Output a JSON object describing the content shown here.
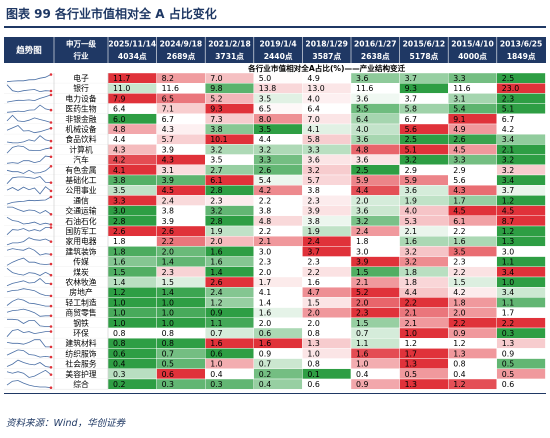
{
  "title": "图表 99    各行业市值相对全 A 占比变化",
  "source": "资料来源：Wind，华创证券",
  "colors": {
    "header_bg": "#1f3864",
    "header_text": "#ffffff",
    "high": "#e0323a",
    "mid": "#ffffff",
    "low": "#2e9e44"
  },
  "chart_data": {
    "type": "heatmap",
    "header": {
      "trend": "趋势图",
      "industry": "申万一级行业",
      "dates": [
        "2025/11/14",
        "2024/9/18",
        "2021/2/18",
        "2019/1/4",
        "2018/1/29",
        "2016/1/27",
        "2015/6/12",
        "2015/4/10",
        "2013/6/25"
      ],
      "points": [
        "4034点",
        "2689点",
        "3731点",
        "2440点",
        "3587点",
        "2638点",
        "5178点",
        "4000点",
        "1849点"
      ],
      "band": "各行业市值相对全A占比(%)——产业结构变迁"
    },
    "rows": [
      {
        "name": "电子",
        "values": [
          11.7,
          8.2,
          7.0,
          5.0,
          4.9,
          3.6,
          3.7,
          3.3,
          2.5
        ]
      },
      {
        "name": "银行",
        "values": [
          11.0,
          11.6,
          9.8,
          13.8,
          13.0,
          11.6,
          9.3,
          11.6,
          23.0
        ]
      },
      {
        "name": "电力设备",
        "values": [
          7.9,
          6.5,
          5.2,
          3.5,
          4.0,
          3.6,
          3.7,
          3.1,
          2.3
        ]
      },
      {
        "name": "医药生物",
        "values": [
          6.4,
          7.1,
          9.3,
          6.5,
          6.4,
          5.5,
          5.8,
          5.4,
          5.1
        ]
      },
      {
        "name": "非银金融",
        "values": [
          6.0,
          6.7,
          7.3,
          8.0,
          7.0,
          6.4,
          6.7,
          9.1,
          6.7
        ]
      },
      {
        "name": "机械设备",
        "values": [
          4.8,
          4.3,
          3.8,
          3.5,
          4.1,
          4.0,
          5.6,
          4.9,
          4.2
        ]
      },
      {
        "name": "食品饮料",
        "values": [
          4.4,
          5.7,
          10.1,
          4.4,
          5.8,
          3.6,
          2.5,
          2.6,
          3.4
        ]
      },
      {
        "name": "计算机",
        "values": [
          4.3,
          3.9,
          3.2,
          3.2,
          3.3,
          4.8,
          5.1,
          4.5,
          2.1
        ]
      },
      {
        "name": "汽车",
        "values": [
          4.2,
          4.3,
          3.5,
          3.3,
          3.6,
          3.6,
          3.2,
          3.3,
          3.2
        ]
      },
      {
        "name": "有色金属",
        "values": [
          4.1,
          3.1,
          2.7,
          2.6,
          3.2,
          2.5,
          2.9,
          2.9,
          3.2
        ]
      },
      {
        "name": "基础化工",
        "values": [
          3.8,
          3.9,
          6.1,
          5.4,
          5.7,
          5.9,
          5.9,
          5.6,
          3.4
        ]
      },
      {
        "name": "公用事业",
        "values": [
          3.5,
          4.5,
          2.8,
          4.2,
          3.8,
          4.4,
          3.6,
          4.3,
          3.7
        ]
      },
      {
        "name": "通信",
        "values": [
          3.3,
          2.4,
          2.3,
          2.2,
          2.3,
          2.0,
          1.9,
          1.7,
          1.2
        ]
      },
      {
        "name": "交通运输",
        "values": [
          3.0,
          3.8,
          3.2,
          3.8,
          3.9,
          3.6,
          4.0,
          4.5,
          4.5
        ]
      },
      {
        "name": "石油石化",
        "values": [
          2.8,
          3.9,
          2.8,
          4.8,
          3.8,
          3.2,
          5.3,
          6.1,
          8.7
        ]
      },
      {
        "name": "国防军工",
        "values": [
          2.6,
          2.6,
          1.9,
          2.2,
          1.9,
          2.4,
          2.1,
          2.2,
          1.2
        ]
      },
      {
        "name": "家用电器",
        "values": [
          1.8,
          2.2,
          2.0,
          2.1,
          2.4,
          1.8,
          1.6,
          1.6,
          1.3
        ]
      },
      {
        "name": "建筑装饰",
        "values": [
          1.8,
          2.0,
          1.6,
          3.0,
          3.7,
          3.0,
          3.2,
          3.5,
          3.0
        ]
      },
      {
        "name": "传媒",
        "values": [
          1.6,
          1.4,
          1.6,
          2.3,
          2.3,
          3.9,
          3.2,
          2.3,
          1.1
        ]
      },
      {
        "name": "煤炭",
        "values": [
          1.5,
          2.3,
          1.4,
          2.0,
          2.2,
          1.5,
          1.8,
          2.2,
          3.4
        ]
      },
      {
        "name": "农林牧渔",
        "values": [
          1.4,
          1.5,
          2.6,
          1.7,
          1.6,
          2.1,
          1.8,
          1.5,
          1.0
        ]
      },
      {
        "name": "房地产",
        "values": [
          1.2,
          1.4,
          2.4,
          4.1,
          4.7,
          5.2,
          4.4,
          4.2,
          3.4
        ]
      },
      {
        "name": "轻工制造",
        "values": [
          1.0,
          1.0,
          1.2,
          1.4,
          1.5,
          2.0,
          2.2,
          1.8,
          1.1
        ]
      },
      {
        "name": "商贸零售",
        "values": [
          1.0,
          1.0,
          0.9,
          1.6,
          2.0,
          2.3,
          2.1,
          2.0,
          1.7
        ]
      },
      {
        "name": "钢铁",
        "values": [
          1.0,
          1.0,
          1.1,
          2.0,
          2.0,
          1.5,
          2.1,
          2.2,
          2.2
        ]
      },
      {
        "name": "环保",
        "values": [
          0.8,
          0.8,
          0.7,
          0.6,
          0.8,
          0.7,
          1.0,
          0.9,
          0.3
        ]
      },
      {
        "name": "建筑材料",
        "values": [
          0.8,
          0.8,
          1.6,
          1.6,
          1.3,
          1.1,
          1.2,
          1.2,
          1.3
        ]
      },
      {
        "name": "纺织服饰",
        "values": [
          0.6,
          0.7,
          0.6,
          0.9,
          1.0,
          1.6,
          1.7,
          1.3,
          0.9
        ]
      },
      {
        "name": "社会服务",
        "values": [
          0.4,
          0.5,
          1.0,
          0.7,
          0.8,
          1.0,
          1.3,
          0.8,
          0.5
        ]
      },
      {
        "name": "美容护理",
        "values": [
          0.3,
          0.6,
          0.4,
          0.2,
          0.1,
          0.4,
          0.5,
          0.4,
          0.5
        ]
      },
      {
        "name": "综合",
        "values": [
          0.2,
          0.3,
          0.3,
          0.4,
          0.6,
          0.9,
          1.3,
          1.2,
          0.6
        ]
      }
    ]
  }
}
